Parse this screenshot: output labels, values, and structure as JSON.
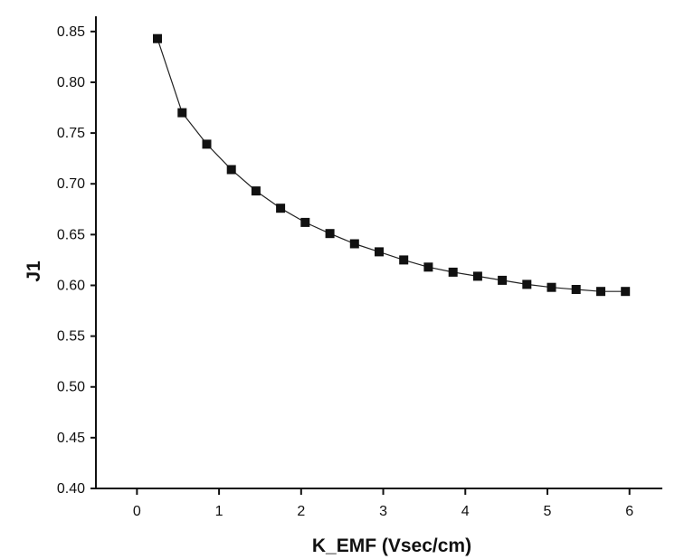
{
  "chart_data": {
    "type": "line",
    "xlabel": "K_EMF (Vsec/cm)",
    "ylabel": "J1",
    "xlim": [
      -0.5,
      6.4
    ],
    "ylim": [
      0.4,
      0.865
    ],
    "x_ticks": [
      0,
      1,
      2,
      3,
      4,
      5,
      6
    ],
    "x_tick_labels": [
      "0",
      "1",
      "2",
      "3",
      "4",
      "5",
      "6"
    ],
    "y_ticks": [
      0.4,
      0.45,
      0.5,
      0.55,
      0.6,
      0.65,
      0.7,
      0.75,
      0.8,
      0.85
    ],
    "y_tick_labels": [
      "0.40",
      "0.45",
      "0.50",
      "0.55",
      "0.60",
      "0.65",
      "0.70",
      "0.75",
      "0.80",
      "0.85"
    ],
    "grid": false,
    "series": [
      {
        "marker": "square",
        "color": "#111111",
        "x": [
          0.25,
          0.55,
          0.85,
          1.15,
          1.45,
          1.75,
          2.05,
          2.35,
          2.65,
          2.95,
          3.25,
          3.55,
          3.85,
          4.15,
          4.45,
          4.75,
          5.05,
          5.35,
          5.65,
          5.95
        ],
        "values": [
          0.843,
          0.77,
          0.739,
          0.714,
          0.693,
          0.676,
          0.662,
          0.651,
          0.641,
          0.633,
          0.625,
          0.618,
          0.613,
          0.609,
          0.605,
          0.601,
          0.598,
          0.596,
          0.594,
          0.594
        ]
      }
    ]
  }
}
